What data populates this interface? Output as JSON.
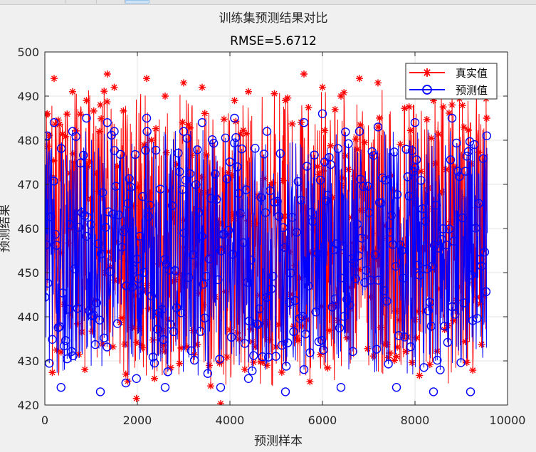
{
  "chart_data": {
    "type": "line",
    "title": "训练集预测结果对比",
    "subtitle": "RMSE=5.6712",
    "xlabel": "预测样本",
    "ylabel": "预测结果",
    "xlim": [
      0,
      10000
    ],
    "ylim": [
      420,
      500
    ],
    "xticks": [
      0,
      2000,
      4000,
      6000,
      8000,
      10000
    ],
    "yticks": [
      420,
      430,
      440,
      450,
      460,
      470,
      480,
      490,
      500
    ],
    "grid": true,
    "legend_position": "top-right",
    "n_samples": 9568,
    "series": [
      {
        "name": "真实值",
        "color": "#ff0000",
        "marker": "*",
        "range": [
          420.26,
          495.76
        ],
        "sample_x": [
          50,
          200,
          350,
          600,
          900,
          1200,
          1350,
          1500,
          1750,
          1980,
          2200,
          2600,
          3000,
          3400,
          3800,
          4100,
          4400,
          4800,
          5200,
          5600,
          6000,
          6400,
          6800,
          7200,
          7600,
          8000,
          8400,
          8800,
          9200,
          9550
        ],
        "sample_y": [
          486,
          494,
          432,
          491,
          489,
          488,
          495,
          492,
          427,
          421.5,
          494,
          490,
          493,
          492,
          420.3,
          489,
          491,
          429,
          489,
          495,
          492,
          490,
          494,
          493,
          431,
          492,
          489,
          488,
          494,
          485
        ]
      },
      {
        "name": "预测值",
        "color": "#0000ff",
        "marker": "o",
        "range": [
          422.7,
          486.5
        ],
        "sample_x": [
          50,
          200,
          350,
          600,
          900,
          1200,
          1350,
          1500,
          1750,
          1980,
          2200,
          2600,
          3000,
          3400,
          3800,
          4100,
          4400,
          4800,
          5200,
          5600,
          6000,
          6400,
          6800,
          7200,
          7600,
          8000,
          8400,
          8800,
          9200,
          9550
        ],
        "sample_y": [
          481,
          484,
          424,
          482,
          485,
          423,
          484,
          482,
          425,
          426,
          485,
          424,
          482,
          484,
          424,
          485,
          426,
          482,
          423,
          484,
          486,
          424,
          482,
          483,
          424,
          484,
          423,
          485,
          423,
          481
        ]
      }
    ]
  }
}
